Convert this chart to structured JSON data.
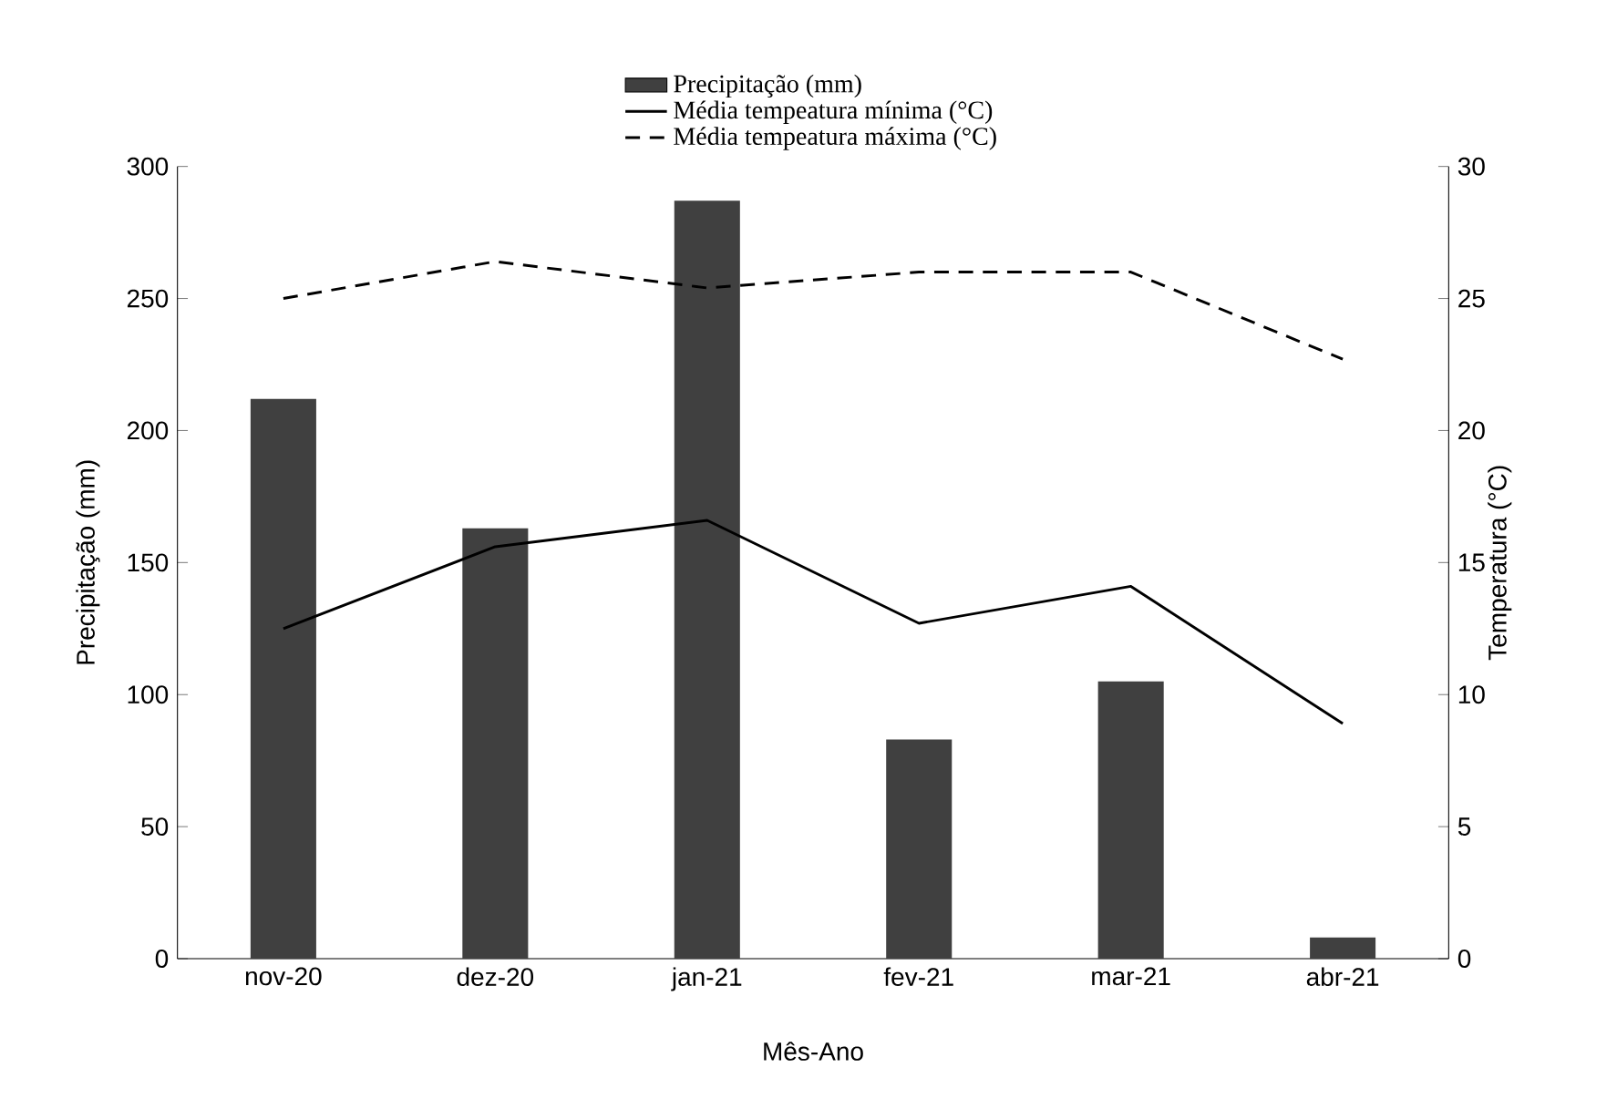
{
  "chart_data": {
    "type": "bar",
    "categories": [
      "nov-20",
      "dez-20",
      "jan-21",
      "fev-21",
      "mar-21",
      "abr-21"
    ],
    "series": [
      {
        "name": "Precipitação (mm)",
        "color": "#404040",
        "values": [
          212,
          163,
          287,
          83,
          105,
          8
        ]
      },
      {
        "name": "Média tempeatura mínima (°C)",
        "type": "line",
        "axis": "y2",
        "line_style": "solid",
        "color": "#000000",
        "values": [
          12.5,
          15.6,
          16.6,
          12.7,
          14.1,
          8.9
        ]
      },
      {
        "name": "Média tempeatura máxima  (°C)",
        "type": "line",
        "axis": "y2",
        "line_style": "dashed",
        "color": "#000000",
        "values": [
          25.0,
          26.4,
          25.4,
          26.0,
          26.0,
          22.7
        ]
      }
    ],
    "xlabel": "Mês-Ano",
    "ylabel": "Precipitação (mm)",
    "y2label": "Temperatura (°C)",
    "ylim": [
      0,
      300
    ],
    "yticks": [
      0,
      50,
      100,
      150,
      200,
      250,
      300
    ],
    "y2lim": [
      0,
      30
    ],
    "y2ticks": [
      0,
      5,
      10,
      15,
      20,
      25,
      30
    ],
    "legend": "top"
  }
}
